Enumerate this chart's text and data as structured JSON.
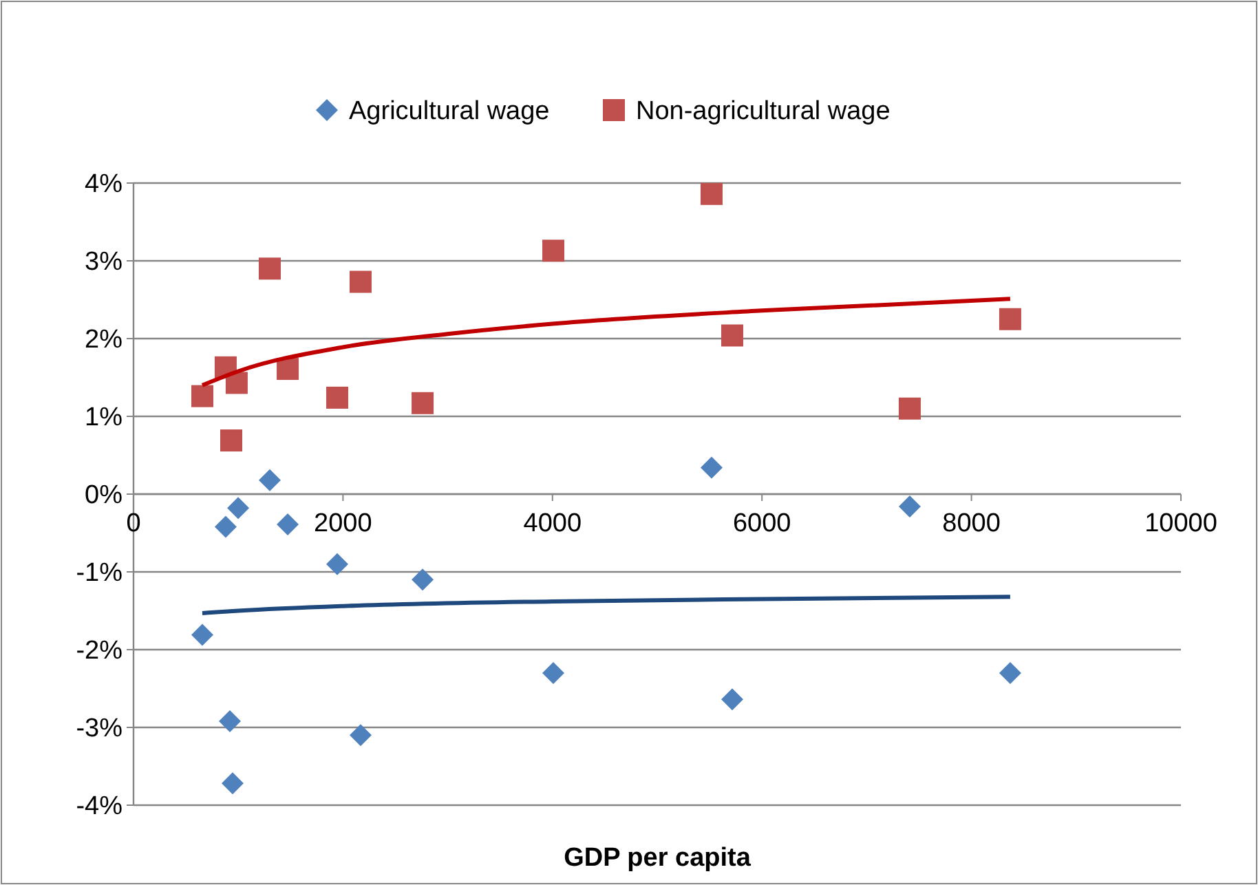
{
  "chart_data": {
    "type": "scatter",
    "xlabel": "GDP per capita",
    "xlim": [
      0,
      10000
    ],
    "xticks": [
      0,
      2000,
      4000,
      6000,
      8000,
      10000
    ],
    "ylim": [
      -4,
      4
    ],
    "yticks": [
      {
        "value": -4,
        "label": "-4%"
      },
      {
        "value": -3,
        "label": "-3%"
      },
      {
        "value": -2,
        "label": "-2%"
      },
      {
        "value": -1,
        "label": "-1%"
      },
      {
        "value": 0,
        "label": "0%"
      },
      {
        "value": 1,
        "label": "1%"
      },
      {
        "value": 2,
        "label": "2%"
      },
      {
        "value": 3,
        "label": "3%"
      },
      {
        "value": 4,
        "label": "4%"
      }
    ],
    "grid": "y",
    "legend": "top",
    "series": [
      {
        "name": "Agricultural wage",
        "color": "#4f81bd",
        "marker": "diamond",
        "x": [
          657,
          880,
          999,
          1301,
          1472,
          1945,
          920,
          946,
          2168,
          2760,
          4008,
          5519,
          5716,
          7411,
          8370
        ],
        "values": [
          -1.81,
          -0.42,
          -0.18,
          0.18,
          -0.39,
          -0.9,
          -2.92,
          -3.72,
          -3.1,
          -1.1,
          -2.3,
          0.34,
          -2.64,
          -0.16,
          -2.3
        ]
      },
      {
        "name": "Non-agricultural wage",
        "color": "#c0504d",
        "marker": "square",
        "x": [
          657,
          880,
          985,
          933,
          1301,
          1472,
          1945,
          2168,
          2760,
          4008,
          5519,
          5716,
          7411,
          8370
        ],
        "values": [
          1.26,
          1.63,
          1.43,
          0.69,
          2.9,
          1.61,
          1.24,
          2.73,
          1.17,
          3.13,
          3.86,
          2.04,
          1.1,
          2.25
        ]
      },
      {
        "type": "line",
        "color": "#1f497d",
        "marker": "none",
        "x": [
          657,
          1000,
          2000,
          4000,
          6000,
          8370
        ],
        "values": [
          -1.53,
          -1.5,
          -1.44,
          -1.38,
          -1.35,
          -1.32
        ]
      },
      {
        "type": "line",
        "color": "#c00000",
        "marker": "none",
        "x": [
          657,
          1000,
          2000,
          3000,
          4000,
          6000,
          8370
        ],
        "values": [
          1.4,
          1.58,
          1.89,
          2.06,
          2.19,
          2.36,
          2.51
        ]
      }
    ]
  }
}
